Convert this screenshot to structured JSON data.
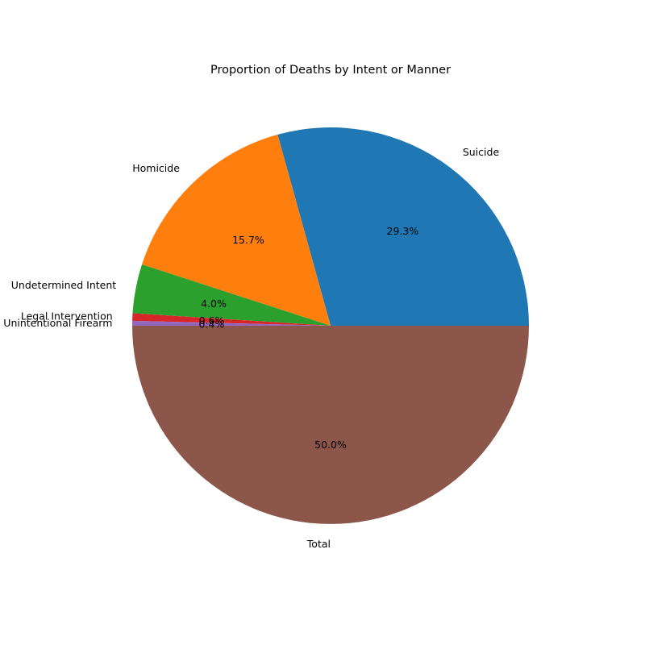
{
  "chart_data": {
    "type": "pie",
    "title": "Proportion of Deaths by Intent or Manner",
    "categories": [
      "Suicide",
      "Homicide",
      "Undetermined Intent",
      "Legal Intervention",
      "Unintentional Firearm",
      "Total"
    ],
    "values": [
      29.3,
      15.7,
      4.0,
      0.6,
      0.4,
      50.0
    ],
    "percent_labels": [
      "29.3%",
      "15.7%",
      "4.0%",
      "0.6%",
      "0.4%",
      "50.0%"
    ],
    "colors": [
      "#1f77b4",
      "#ff7f0e",
      "#2ca02c",
      "#d62728",
      "#9467bd",
      "#8c564b"
    ],
    "start_angle_deg": 0,
    "direction": "counterclockwise",
    "legend": "none"
  }
}
